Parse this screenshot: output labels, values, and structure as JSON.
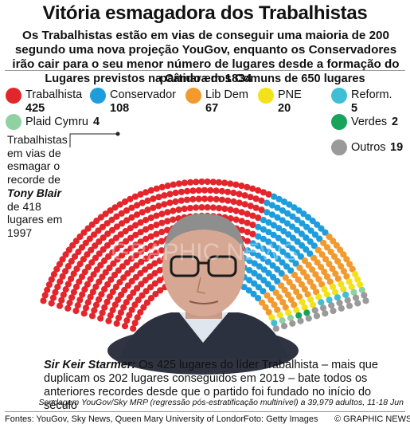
{
  "header": {
    "title": "Vitória esmagadora dos Trabalhistas",
    "subtitle": "Os Trabalhistas estão em vias de conseguir uma maioria de 200 segundo uma nova projeção YouGov, enquanto os Conservadores irão cair para o seu menor número de lugares desde a formação do partido em 1834"
  },
  "chart_data": {
    "type": "parliament",
    "title": "Lugares previstos na Câmara dos Comuns de 650 lugares",
    "total_seats": 650,
    "series": [
      {
        "name": "Trabalhista",
        "value": 425,
        "color": "#e3262c"
      },
      {
        "name": "Conservador",
        "value": 108,
        "color": "#1e9ddc"
      },
      {
        "name": "Lib Dem",
        "value": 67,
        "color": "#f29a2e"
      },
      {
        "name": "PNE",
        "value": 20,
        "color": "#f3e21b"
      },
      {
        "name": "Reform.",
        "value": 5,
        "color": "#3fbfd6"
      },
      {
        "name": "Plaid Cymru",
        "value": 4,
        "color": "#8fd1a0"
      },
      {
        "name": "Verdes",
        "value": 2,
        "color": "#17a45a"
      },
      {
        "name": "Outros",
        "value": 19,
        "color": "#9a9a9a"
      }
    ]
  },
  "legend": {
    "trabalhista": {
      "label": "Trabalhista",
      "count": "425"
    },
    "conservador": {
      "label": "Conservador",
      "count": "108"
    },
    "libdem": {
      "label": "Lib Dem",
      "count": "67"
    },
    "pne": {
      "label": "PNE",
      "count": "20"
    },
    "reform": {
      "label": "Reform.",
      "count": "5"
    },
    "plaid": {
      "label": "Plaid Cymru",
      "count": "4"
    },
    "verdes": {
      "label": "Verdes",
      "count": "2"
    },
    "outros": {
      "label": "Outros",
      "count": "19"
    }
  },
  "side_note": {
    "line1": "Trabalhistas em vias de esmagar o recorde de",
    "name": "Tony Blair",
    "line2": "de 418 lugares em 1997"
  },
  "caption": {
    "name": "Sir Keir Starmer:",
    "text": " Os 425 lugares do líder Trabalhista – mais que duplicam os 202 lugares conseguidos em 2019 – bate todos os anteriores recordes desde que o partido foi fundado no início do século"
  },
  "source_note": "Sondagem YouGov/Sky MRP (regressão pós-estratificação multinível) a 39,979 adultos, 11-18 Jun",
  "footer": {
    "sources": "Fontes: YouGov, Sky News, Queen Mary University of London",
    "photo": "Foto: Getty Images",
    "credit": "© GRAPHIC NEWS"
  },
  "watermark": "GRAPHIC NEWS"
}
